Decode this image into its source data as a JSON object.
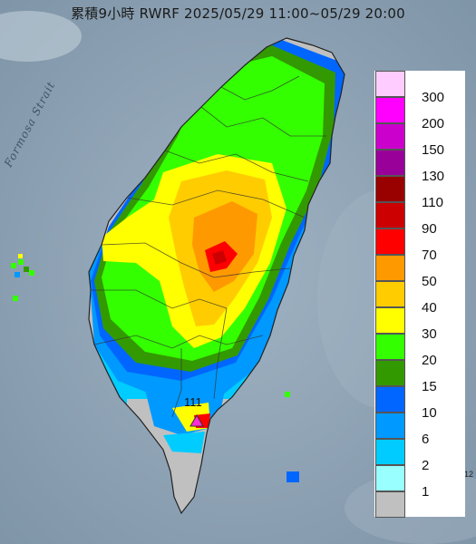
{
  "title": "累積9小時 RWRF 2025/05/29 11:00~05/29 20:00",
  "strait_label": "Formosa Strait",
  "marker": {
    "label": "111",
    "color": "#ff2bd6"
  },
  "edge_label": "12",
  "legend": {
    "items": [
      {
        "value": "300",
        "color": "#ffccff"
      },
      {
        "value": "200",
        "color": "#ff00ff"
      },
      {
        "value": "150",
        "color": "#cc00cc"
      },
      {
        "value": "130",
        "color": "#990099"
      },
      {
        "value": "110",
        "color": "#990000"
      },
      {
        "value": "90",
        "color": "#cc0000"
      },
      {
        "value": "70",
        "color": "#ff0000"
      },
      {
        "value": "50",
        "color": "#ff9900"
      },
      {
        "value": "40",
        "color": "#ffcc00"
      },
      {
        "value": "30",
        "color": "#ffff00"
      },
      {
        "value": "20",
        "color": "#33ff00"
      },
      {
        "value": "15",
        "color": "#339900"
      },
      {
        "value": "10",
        "color": "#0066ff"
      },
      {
        "value": "6",
        "color": "#0099ff"
      },
      {
        "value": "2",
        "color": "#00ccff"
      },
      {
        "value": "1",
        "color": "#99ffff"
      },
      {
        "value": "",
        "color": "#c0c0c0"
      }
    ]
  }
}
